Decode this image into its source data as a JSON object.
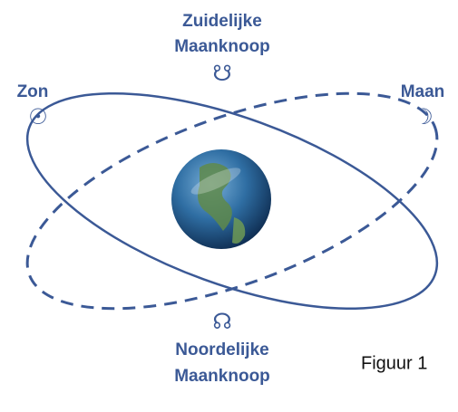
{
  "labels": {
    "south_node": {
      "lines": [
        "Zuidelijke",
        "Maanknoop"
      ],
      "symbol": "☋"
    },
    "sun": {
      "label": "Zon",
      "symbol": "☉"
    },
    "moon": {
      "label": "Maan",
      "symbol": "☽"
    },
    "north_node": {
      "lines": [
        "Noordelijke",
        "Maanknoop"
      ],
      "symbol": "☊"
    }
  },
  "caption": "Figuur 1"
}
